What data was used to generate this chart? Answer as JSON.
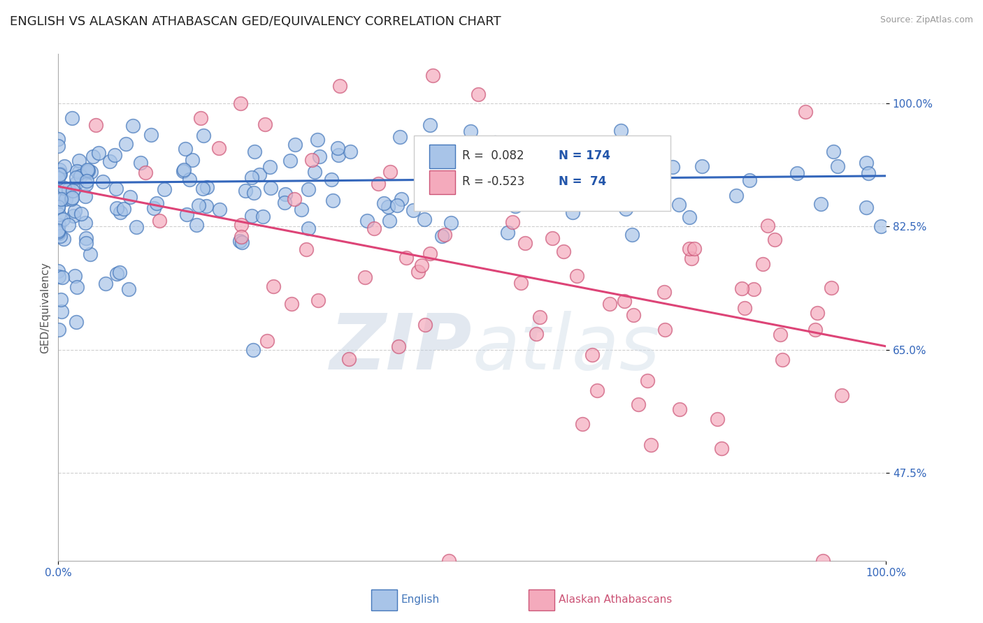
{
  "title": "ENGLISH VS ALASKAN ATHABASCAN GED/EQUIVALENCY CORRELATION CHART",
  "source": "Source: ZipAtlas.com",
  "ylabel": "GED/Equivalency",
  "xlim": [
    0.0,
    1.0
  ],
  "ylim": [
    0.35,
    1.07
  ],
  "yticks": [
    0.475,
    0.65,
    0.825,
    1.0
  ],
  "ytick_labels": [
    "47.5%",
    "65.0%",
    "82.5%",
    "100.0%"
  ],
  "xtick_labels": [
    "0.0%",
    "100.0%"
  ],
  "xticks": [
    0.0,
    1.0
  ],
  "english_R": 0.082,
  "english_N": 174,
  "athabascan_R": -0.523,
  "athabascan_N": 74,
  "blue_fill": "#A8C4E8",
  "blue_edge": "#4477BB",
  "pink_fill": "#F4AABC",
  "pink_edge": "#CC5577",
  "blue_line_color": "#3366BB",
  "pink_line_color": "#DD4477",
  "background_color": "#FFFFFF",
  "title_fontsize": 13,
  "axis_label_fontsize": 11,
  "tick_fontsize": 11,
  "legend_R_blue": "#2255AA",
  "legend_R_pink": "#CC3366",
  "legend_N_color": "#2255AA"
}
